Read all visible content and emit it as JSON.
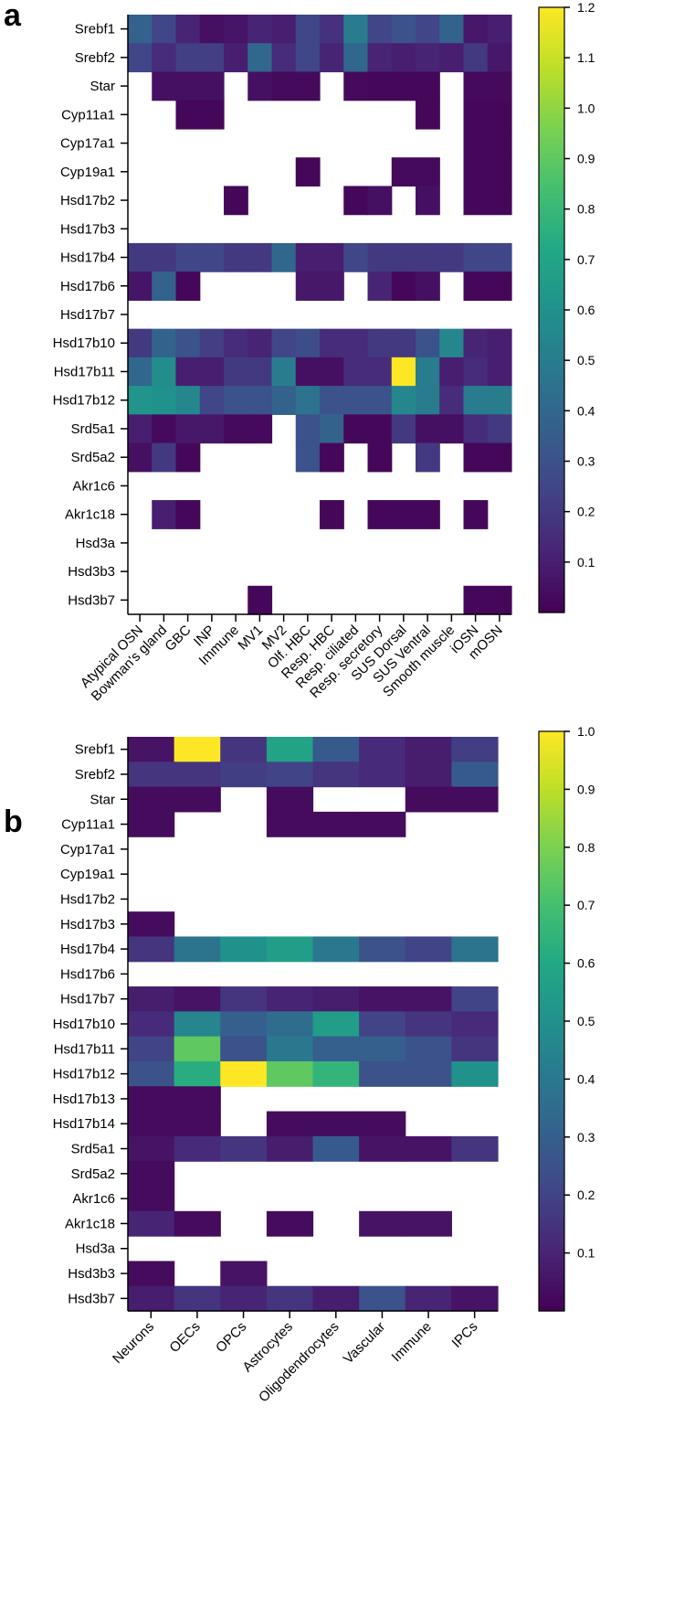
{
  "chart_data": [
    {
      "type": "heatmap",
      "panel_label": "a",
      "rows": [
        "Srebf1",
        "Srebf2",
        "Star",
        "Cyp11a1",
        "Cyp17a1",
        "Cyp19a1",
        "Hsd17b2",
        "Hsd17b3",
        "Hsd17b4",
        "Hsd17b6",
        "Hsd17b7",
        "Hsd17b10",
        "Hsd17b11",
        "Hsd17b12",
        "Srd5a1",
        "Srd5a2",
        "Akr1c6",
        "Akr1c18",
        "Hsd3a",
        "Hsd3b3",
        "Hsd3b7"
      ],
      "columns": [
        "Atypical OSN",
        "Bowman's gland",
        "GBC",
        "INP",
        "Immune",
        "MV1",
        "MV2",
        "Olf. HBC",
        "Resp. HBC",
        "Resp. ciliated",
        "Resp. secretory",
        "SUS Dorsal",
        "SUS Ventral",
        "Smooth muscle",
        "iOSN",
        "mOSN"
      ],
      "values": [
        [
          0.38,
          0.25,
          0.12,
          0.05,
          0.07,
          0.12,
          0.1,
          0.25,
          0.17,
          0.5,
          0.25,
          0.3,
          0.25,
          0.38,
          0.08,
          0.1
        ],
        [
          0.25,
          0.15,
          0.22,
          0.22,
          0.1,
          0.4,
          0.15,
          0.25,
          0.12,
          0.4,
          0.12,
          0.1,
          0.12,
          0.1,
          0.2,
          0.08
        ],
        [
          null,
          0.05,
          0.05,
          0.05,
          null,
          0.05,
          0.03,
          0.03,
          null,
          0.03,
          0.02,
          0.02,
          0.02,
          null,
          0.03,
          0.03
        ],
        [
          null,
          null,
          0.02,
          0.02,
          null,
          null,
          null,
          null,
          null,
          null,
          null,
          null,
          0.02,
          null,
          0.02,
          0.02
        ],
        [
          null,
          null,
          null,
          null,
          null,
          null,
          null,
          null,
          null,
          null,
          null,
          null,
          null,
          null,
          0.02,
          0.02
        ],
        [
          null,
          null,
          null,
          null,
          null,
          null,
          null,
          0.02,
          null,
          null,
          null,
          0.03,
          0.03,
          null,
          0.02,
          0.02
        ],
        [
          null,
          null,
          null,
          null,
          0.02,
          null,
          null,
          null,
          null,
          0.02,
          0.05,
          null,
          0.05,
          null,
          0.02,
          0.02
        ],
        [
          null,
          null,
          null,
          null,
          null,
          null,
          null,
          null,
          null,
          null,
          null,
          null,
          null,
          null,
          null,
          null
        ],
        [
          0.2,
          0.2,
          0.25,
          0.25,
          0.2,
          0.2,
          0.4,
          0.1,
          0.1,
          0.25,
          0.2,
          0.2,
          0.2,
          0.2,
          0.25,
          0.25
        ],
        [
          0.07,
          0.38,
          0.02,
          null,
          null,
          null,
          null,
          0.08,
          0.08,
          null,
          0.12,
          0.02,
          0.05,
          null,
          0.02,
          0.02
        ],
        [
          null,
          null,
          null,
          null,
          null,
          null,
          null,
          null,
          null,
          null,
          null,
          null,
          null,
          null,
          null,
          null
        ],
        [
          0.2,
          0.38,
          0.3,
          0.22,
          0.15,
          0.12,
          0.25,
          0.28,
          0.15,
          0.15,
          0.2,
          0.2,
          0.3,
          0.55,
          0.12,
          0.1
        ],
        [
          0.4,
          0.58,
          0.1,
          0.1,
          0.2,
          0.2,
          0.5,
          0.05,
          0.05,
          0.15,
          0.15,
          1.2,
          0.5,
          0.1,
          0.15,
          0.1
        ],
        [
          0.62,
          0.6,
          0.55,
          0.25,
          0.3,
          0.3,
          0.38,
          0.45,
          0.3,
          0.3,
          0.3,
          0.55,
          0.5,
          0.15,
          0.5,
          0.5
        ],
        [
          0.1,
          0.03,
          0.08,
          0.08,
          0.03,
          0.03,
          null,
          0.3,
          0.38,
          0.02,
          0.02,
          0.2,
          0.05,
          0.05,
          0.15,
          0.2
        ],
        [
          0.05,
          0.2,
          0.02,
          null,
          null,
          null,
          null,
          0.3,
          0.02,
          null,
          0.02,
          null,
          0.2,
          null,
          0.02,
          0.02
        ],
        [
          null,
          null,
          null,
          null,
          null,
          null,
          null,
          null,
          null,
          null,
          null,
          null,
          null,
          null,
          null,
          null
        ],
        [
          null,
          0.1,
          0.02,
          null,
          null,
          null,
          null,
          null,
          0.02,
          null,
          0.02,
          0.02,
          0.02,
          null,
          0.02,
          null
        ],
        [
          null,
          null,
          null,
          null,
          null,
          null,
          null,
          null,
          null,
          null,
          null,
          null,
          null,
          null,
          null,
          null
        ],
        [
          null,
          null,
          null,
          null,
          null,
          null,
          null,
          null,
          null,
          null,
          null,
          null,
          null,
          null,
          null,
          null
        ],
        [
          null,
          null,
          null,
          null,
          null,
          0.02,
          null,
          null,
          null,
          null,
          null,
          null,
          null,
          null,
          0.02,
          0.02
        ]
      ],
      "colorbar": {
        "min": 0,
        "max": 1.2,
        "ticks": [
          0.1,
          0.2,
          0.3,
          0.4,
          0.5,
          0.6,
          0.7,
          0.8,
          0.9,
          1.0,
          1.1,
          1.2
        ],
        "tick_labels": [
          "0.1",
          "0.2",
          "0.3",
          "0.4",
          "0.5",
          "0.6",
          "0.7",
          "0.8",
          "0.9",
          "1.0",
          "1.1",
          "1.2"
        ]
      },
      "colormap": "viridis"
    },
    {
      "type": "heatmap",
      "panel_label": "b",
      "rows": [
        "Srebf1",
        "Srebf2",
        "Star",
        "Cyp11a1",
        "Cyp17a1",
        "Cyp19a1",
        "Hsd17b2",
        "Hsd17b3",
        "Hsd17b4",
        "Hsd17b6",
        "Hsd17b7",
        "Hsd17b10",
        "Hsd17b11",
        "Hsd17b12",
        "Hsd17b13",
        "Hsd17b14",
        "Srd5a1",
        "Srd5a2",
        "Akr1c6",
        "Akr1c18",
        "Hsd3a",
        "Hsd3b3",
        "Hsd3b7"
      ],
      "columns": [
        "Neurons",
        "OECs",
        "OPCs",
        "Astrocytes",
        "Oligodendrocytes",
        "Vascular",
        "Immune",
        "IPCs"
      ],
      "values": [
        [
          0.05,
          1.0,
          0.15,
          0.58,
          0.28,
          0.12,
          0.08,
          0.18
        ],
        [
          0.15,
          0.15,
          0.18,
          0.2,
          0.15,
          0.12,
          0.08,
          0.28
        ],
        [
          0.03,
          0.03,
          null,
          0.03,
          null,
          null,
          0.03,
          0.03
        ],
        [
          0.03,
          null,
          null,
          0.03,
          0.03,
          0.03,
          null,
          null
        ],
        [
          null,
          null,
          null,
          null,
          null,
          null,
          null,
          null
        ],
        [
          null,
          null,
          null,
          null,
          null,
          null,
          null,
          null
        ],
        [
          null,
          null,
          null,
          null,
          null,
          null,
          null,
          null
        ],
        [
          0.03,
          null,
          null,
          null,
          null,
          null,
          null,
          null
        ],
        [
          0.15,
          0.38,
          0.5,
          0.55,
          0.4,
          0.25,
          0.2,
          0.38
        ],
        [
          null,
          null,
          null,
          null,
          null,
          null,
          null,
          null
        ],
        [
          0.08,
          0.05,
          0.15,
          0.1,
          0.08,
          0.05,
          0.05,
          0.2
        ],
        [
          0.12,
          0.45,
          0.3,
          0.35,
          0.55,
          0.2,
          0.15,
          0.12
        ],
        [
          0.2,
          0.75,
          0.25,
          0.4,
          0.3,
          0.3,
          0.25,
          0.15
        ],
        [
          0.25,
          0.62,
          1.0,
          0.75,
          0.65,
          0.25,
          0.25,
          0.5
        ],
        [
          0.03,
          0.03,
          null,
          null,
          null,
          null,
          null,
          null
        ],
        [
          0.03,
          0.03,
          null,
          0.03,
          0.03,
          0.03,
          null,
          null
        ],
        [
          0.05,
          0.12,
          0.15,
          0.08,
          0.28,
          0.05,
          0.05,
          0.15
        ],
        [
          0.03,
          null,
          null,
          null,
          null,
          null,
          null,
          null
        ],
        [
          0.03,
          null,
          null,
          null,
          null,
          null,
          null,
          null
        ],
        [
          0.1,
          0.03,
          null,
          0.03,
          null,
          0.05,
          0.05,
          null
        ],
        [
          null,
          null,
          null,
          null,
          null,
          null,
          null,
          null
        ],
        [
          0.03,
          null,
          0.05,
          null,
          null,
          null,
          null,
          null
        ],
        [
          0.08,
          0.15,
          0.1,
          0.15,
          0.08,
          0.25,
          0.1,
          0.05
        ]
      ],
      "colorbar": {
        "min": 0,
        "max": 1.0,
        "ticks": [
          0.1,
          0.2,
          0.3,
          0.4,
          0.5,
          0.6,
          0.7,
          0.8,
          0.9,
          1.0
        ],
        "tick_labels": [
          "0.1",
          "0.2",
          "0.3",
          "0.4",
          "0.5",
          "0.6",
          "0.7",
          "0.8",
          "0.9",
          "1.0"
        ]
      },
      "colormap": "viridis"
    }
  ]
}
